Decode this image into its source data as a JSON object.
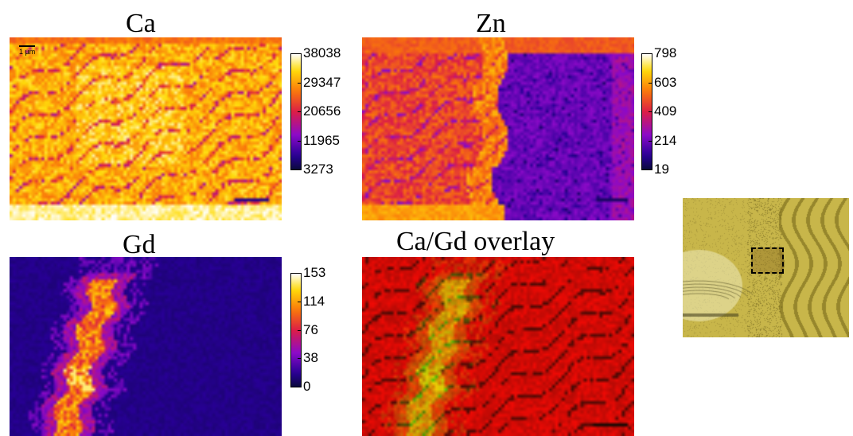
{
  "panels": {
    "ca": {
      "title": "Ca",
      "colorbar_ticks": [
        "38038",
        "29347",
        "20656",
        "11965",
        "3273"
      ],
      "colormap": "gnuplot-hot"
    },
    "zn": {
      "title": "Zn",
      "colorbar_ticks": [
        "798",
        "603",
        "409",
        "214",
        "19"
      ],
      "colormap": "gnuplot-hot"
    },
    "gd": {
      "title": "Gd",
      "colorbar_ticks": [
        "153",
        "114",
        "76",
        "38",
        "0"
      ],
      "colormap": "gnuplot-hot"
    },
    "overlay": {
      "title": "Ca/Gd overlay",
      "colors": {
        "ca": "#e0140c",
        "gd": "#b8ff40"
      }
    }
  },
  "scalebar_label": "1 µm",
  "micrograph": {
    "description_icon": "optical-micrograph",
    "roi": "dashed-rectangle"
  }
}
